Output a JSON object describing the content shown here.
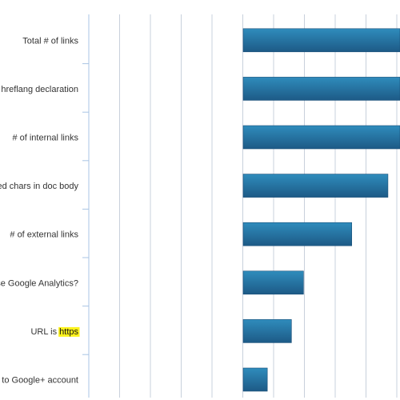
{
  "chart_data": {
    "type": "bar",
    "orientation": "horizontal",
    "categories": [
      "Total # of links",
      "as hreflang declaration",
      "# of internal links",
      "ped chars in doc body",
      "# of external links",
      "use Google Analytics?",
      "URL is https",
      "nk to Google+ account"
    ],
    "category_parts": [
      {
        "text": "Total # of links",
        "highlight": ""
      },
      {
        "text": "as hreflang declaration",
        "highlight": ""
      },
      {
        "text": "# of internal links",
        "highlight": ""
      },
      {
        "text": "ped chars in doc body",
        "highlight": ""
      },
      {
        "text": "# of external links",
        "highlight": ""
      },
      {
        "text": "use Google Analytics?",
        "highlight": ""
      },
      {
        "text": "URL is ",
        "highlight": "https"
      },
      {
        "text": "nk to Google+ account",
        "highlight": ""
      }
    ],
    "values": [
      5.2,
      5.2,
      5.2,
      4.8,
      3.6,
      2.0,
      1.6,
      0.8
    ],
    "xlim": [
      -5,
      5.2
    ],
    "grid": true,
    "legend": "none",
    "title": "",
    "xlabel": "",
    "ylabel": "",
    "colors": {
      "bar_top": "#2f8cbc",
      "bar_bottom": "#1d5a86",
      "bar_border": "#1a4f78",
      "grid": "#c8d0dc",
      "axis": "#a9c4e4",
      "highlight": "#fdf21c"
    }
  }
}
